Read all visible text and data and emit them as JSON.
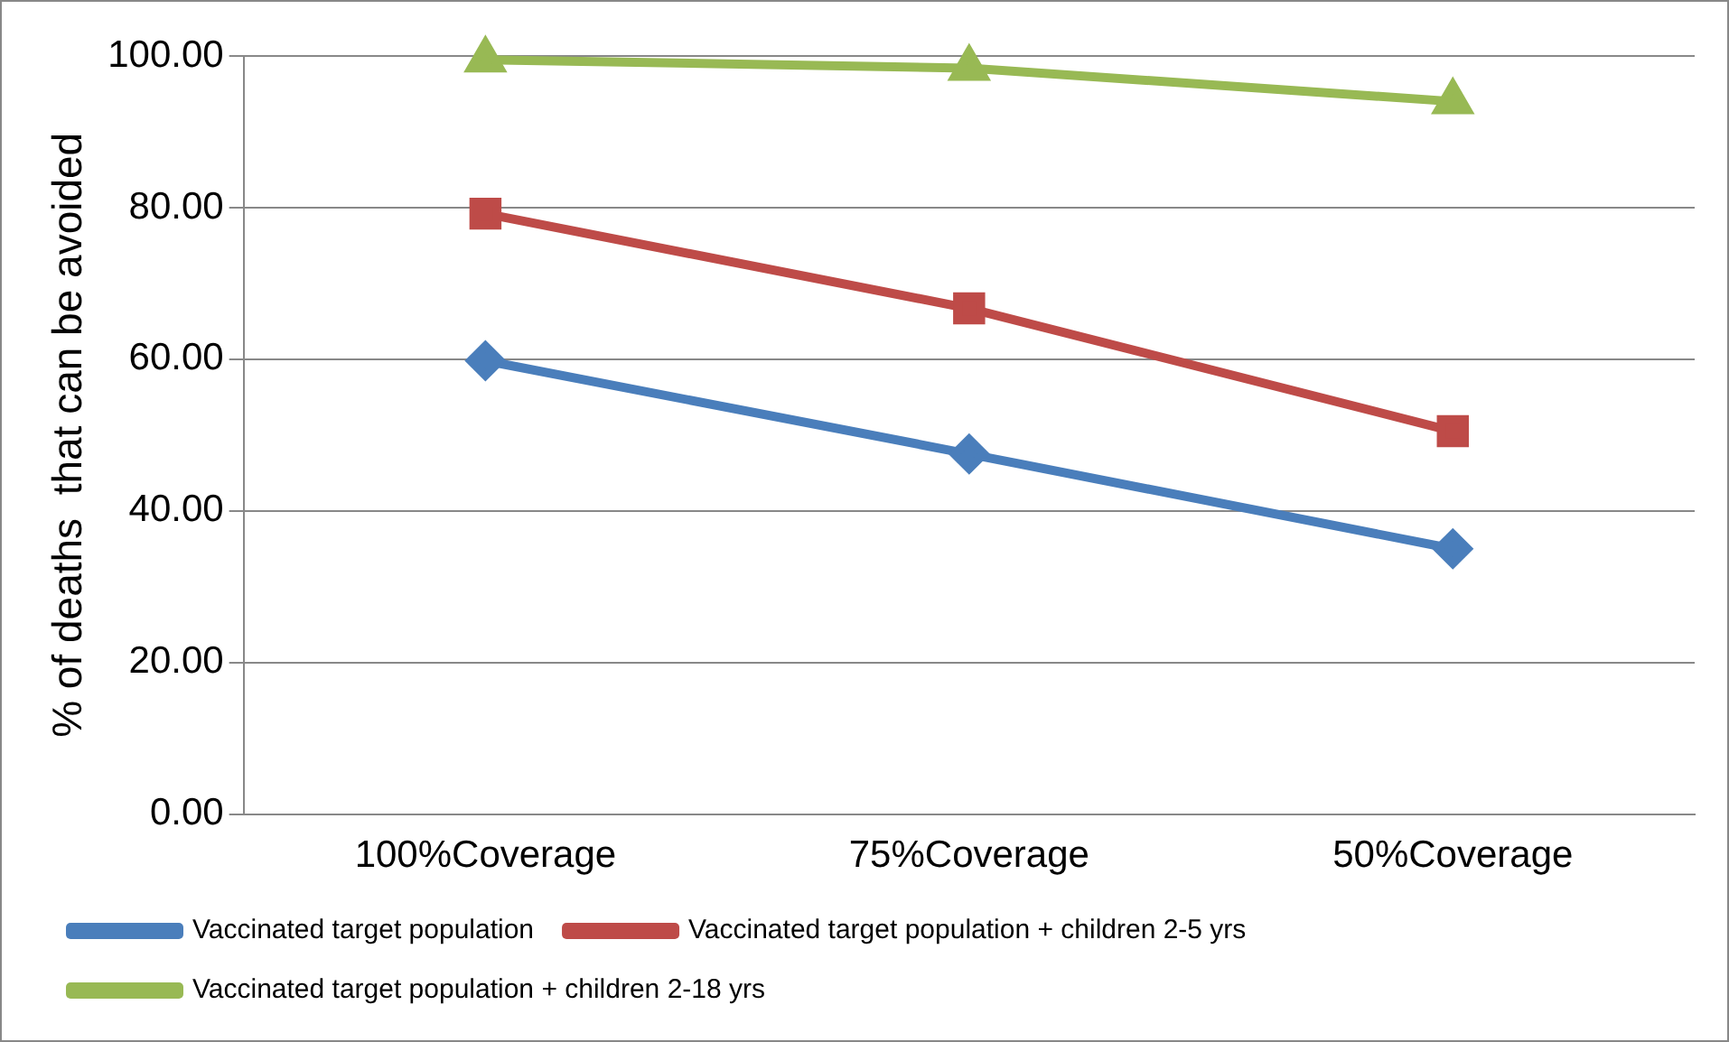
{
  "chart_data": {
    "type": "line",
    "ylabel": "% of deaths  that can be avoided",
    "categories": [
      "100%Coverage",
      "75%Coverage",
      "50%Coverage"
    ],
    "series": [
      {
        "name": "Vaccinated target population",
        "color": "#4a7ebb",
        "marker": "diamond",
        "values": [
          59.8,
          47.5,
          35.0
        ]
      },
      {
        "name": "Vaccinated target population + children 2-5 yrs",
        "color": "#be4b48",
        "marker": "square",
        "values": [
          79.2,
          66.7,
          50.5
        ]
      },
      {
        "name": "Vaccinated target population + children 2-18 yrs",
        "color": "#98b954",
        "marker": "triangle",
        "values": [
          99.5,
          98.4,
          94.0
        ]
      }
    ],
    "ylim": [
      0,
      100
    ],
    "yticks": [
      {
        "value": 0,
        "label": "0.00"
      },
      {
        "value": 20,
        "label": "20.00"
      },
      {
        "value": 40,
        "label": "40.00"
      },
      {
        "value": 60,
        "label": "60.00"
      },
      {
        "value": 80,
        "label": "80.00"
      },
      {
        "value": 100,
        "label": "100.00"
      }
    ],
    "grid": "y",
    "legend": "bottom",
    "line_style": "solid"
  }
}
